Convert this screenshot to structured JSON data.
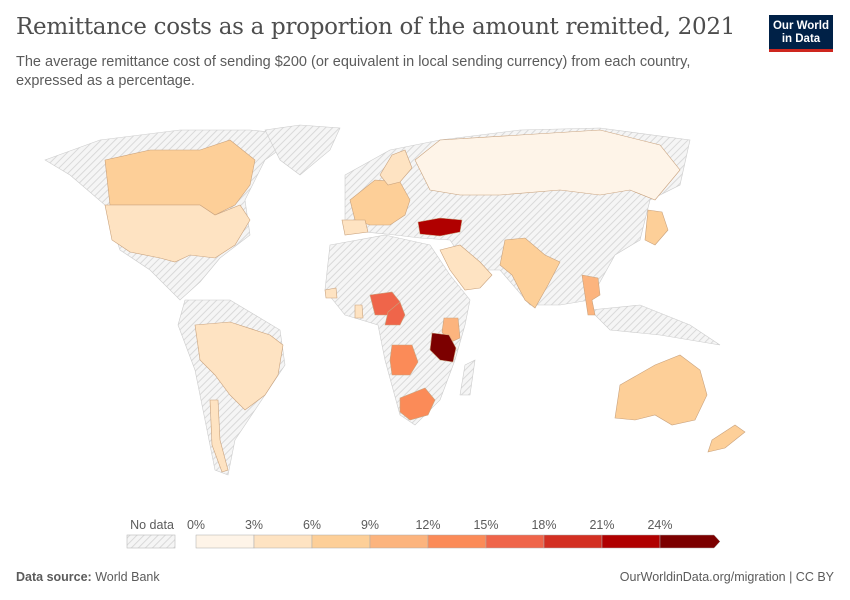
{
  "header": {
    "title": "Remittance costs as a proportion of the amount remitted, 2021",
    "subtitle": "The average remittance cost of sending $200 (or equivalent in local sending currency) from each country, expressed as a percentage.",
    "logo_line1": "Our World",
    "logo_line2": "in Data"
  },
  "chart_data": {
    "type": "choropleth",
    "title": "Remittance costs as a proportion of the amount remitted, 2021",
    "unit": "%",
    "legend": {
      "no_data_label": "No data",
      "bins": [
        0,
        3,
        6,
        9,
        12,
        15,
        18,
        21,
        24
      ],
      "tick_labels": [
        "0%",
        "3%",
        "6%",
        "9%",
        "12%",
        "15%",
        "18%",
        "21%",
        "24%"
      ],
      "colors": [
        "#fef4e8",
        "#fee3c2",
        "#fdcf98",
        "#fcb47e",
        "#fb8b58",
        "#ef654a",
        "#d32f22",
        "#b00000",
        "#7c0000"
      ],
      "no_data_color": "#e6e6e6",
      "placement": "bottom"
    },
    "regions": [
      {
        "country": "Canada",
        "value": 7
      },
      {
        "country": "United States",
        "value": 5
      },
      {
        "country": "Brazil",
        "value": 4
      },
      {
        "country": "Chile",
        "value": 4
      },
      {
        "country": "Russia",
        "value": 1.5
      },
      {
        "country": "Western Europe",
        "value": 7
      },
      {
        "country": "Spain",
        "value": 5
      },
      {
        "country": "Nordics",
        "value": 5
      },
      {
        "country": "Turkey",
        "value": 22
      },
      {
        "country": "Saudi Arabia",
        "value": 4
      },
      {
        "country": "India",
        "value": 6
      },
      {
        "country": "Thailand",
        "value": 9
      },
      {
        "country": "Japan",
        "value": 6
      },
      {
        "country": "Australia",
        "value": 7
      },
      {
        "country": "New Zealand",
        "value": 8
      },
      {
        "country": "Nigeria",
        "value": 16
      },
      {
        "country": "Cameroon",
        "value": 16
      },
      {
        "country": "Ghana",
        "value": 5
      },
      {
        "country": "Senegal",
        "value": 5
      },
      {
        "country": "Kenya",
        "value": 10
      },
      {
        "country": "Tanzania",
        "value": 26
      },
      {
        "country": "Angola",
        "value": 13
      },
      {
        "country": "South Africa",
        "value": 13
      }
    ]
  },
  "footer": {
    "source_label": "Data source:",
    "source": "World Bank",
    "link": "OurWorldinData.org/migration | CC BY"
  }
}
